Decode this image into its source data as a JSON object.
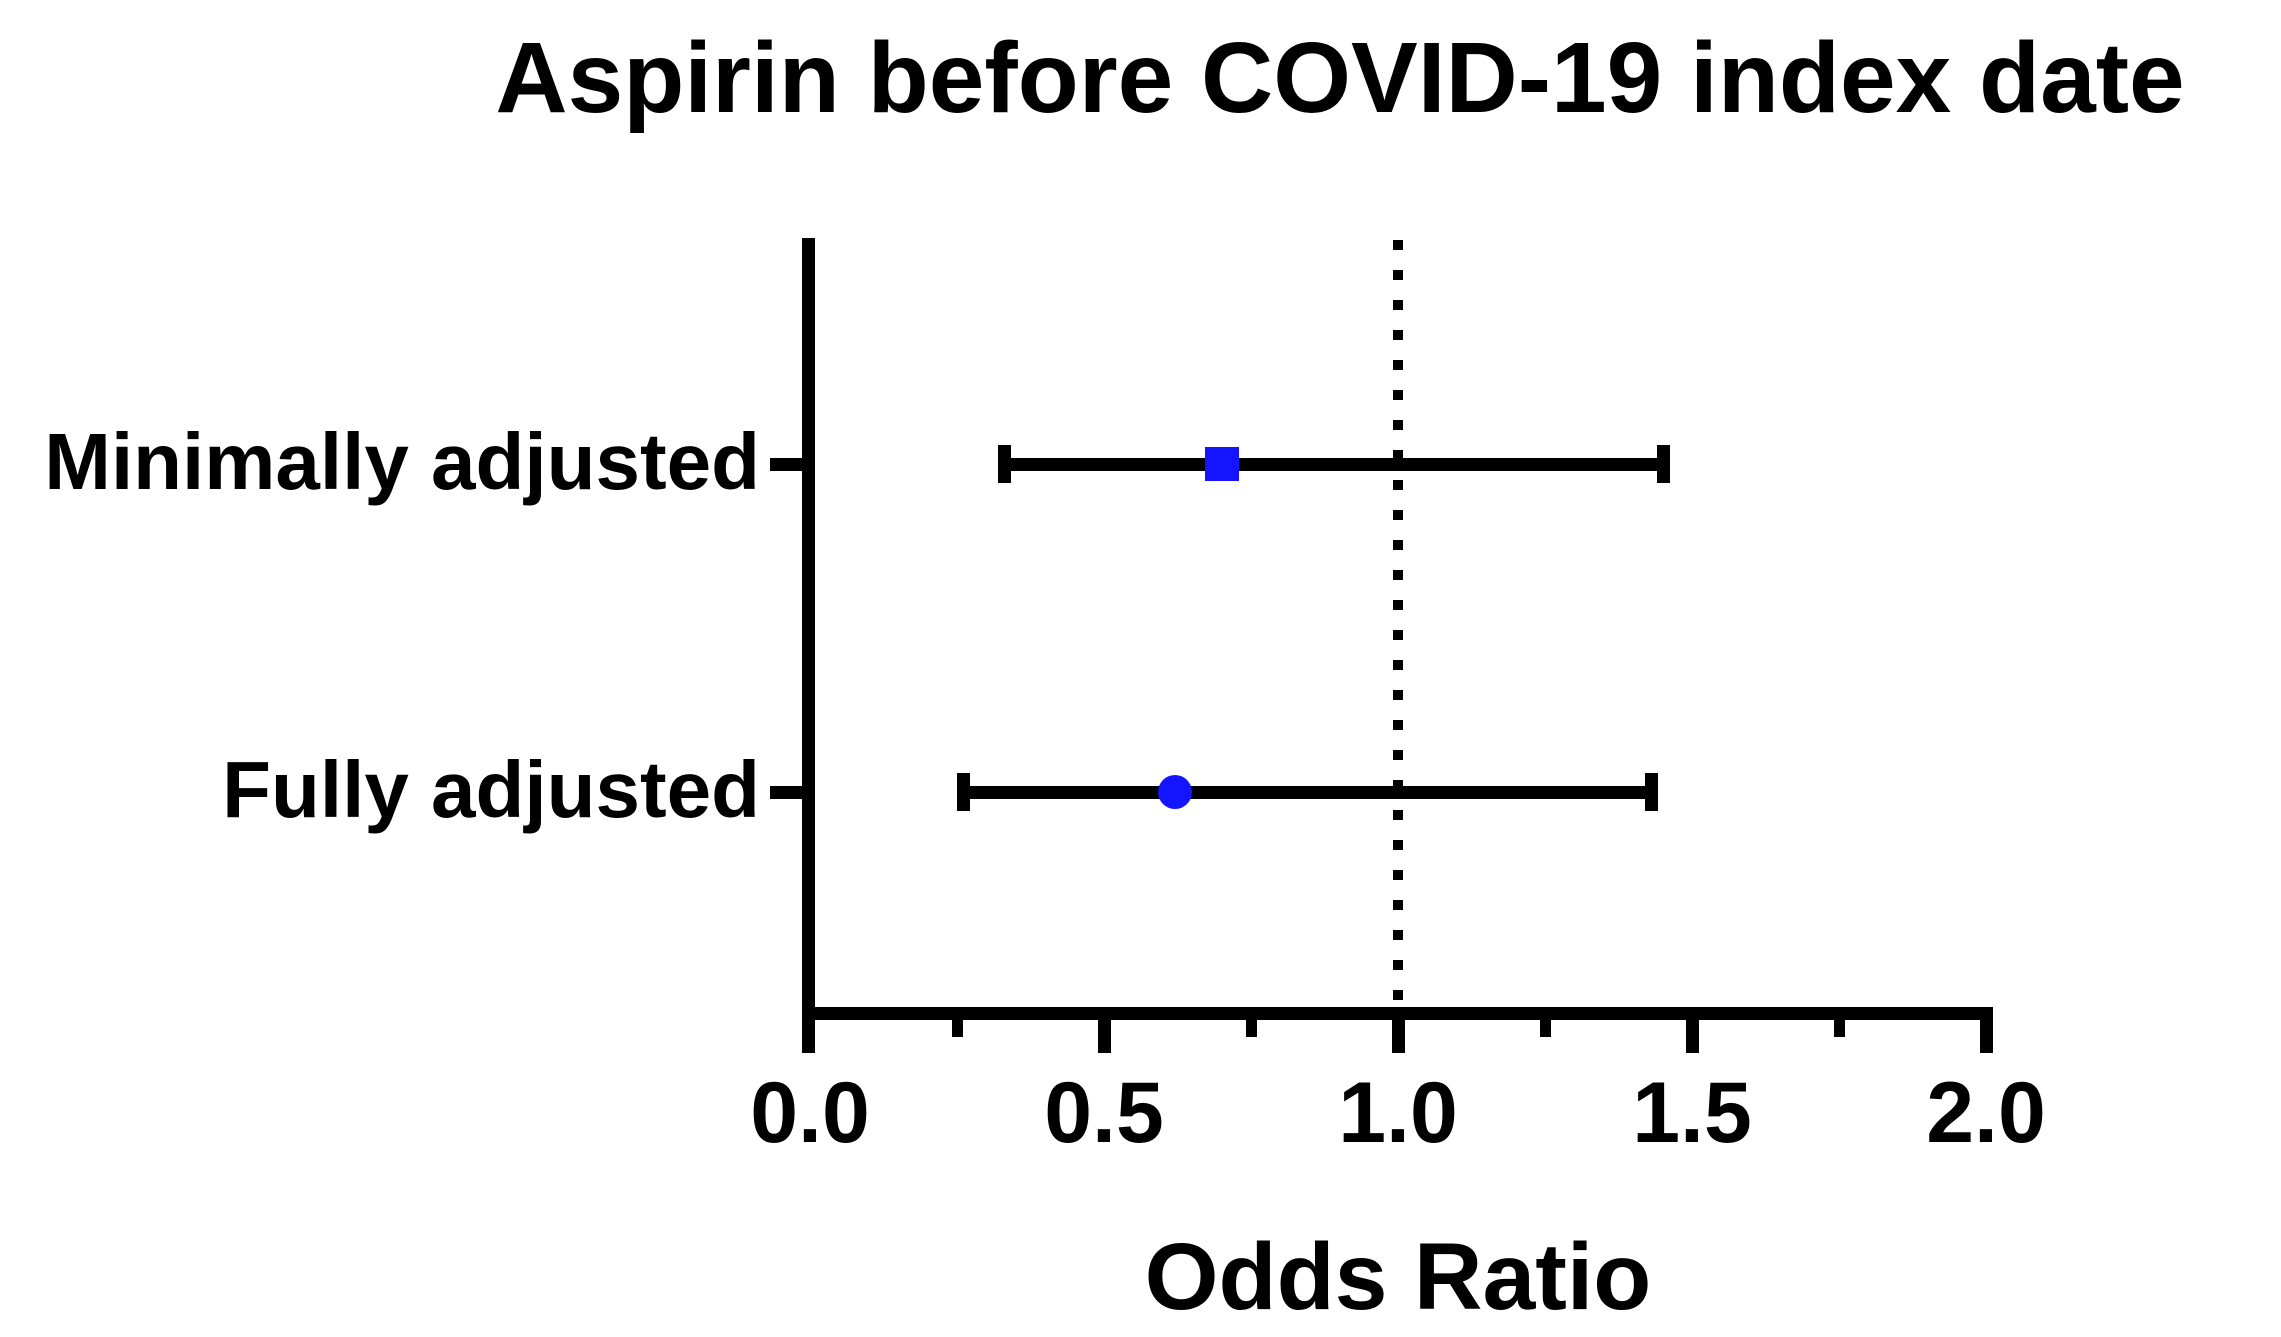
{
  "figure": {
    "title": "Aspirin before COVID-19 index date",
    "background": "#ffffff",
    "ink_color": "#000000"
  },
  "chart_data": {
    "type": "scatter",
    "subtype": "forest-plot",
    "title": "Aspirin before COVID-19 index date",
    "xlabel": "Odds Ratio",
    "ylabel": "",
    "xlim": [
      0.0,
      2.0
    ],
    "grid": false,
    "legend": false,
    "reference_line": {
      "x": 1.0,
      "style": "dotted",
      "color": "#000000"
    },
    "x_ticks": {
      "values": [
        0.0,
        0.5,
        1.0,
        1.5,
        2.0
      ],
      "labels": [
        "0.0",
        "0.5",
        "1.0",
        "1.5",
        "2.0"
      ]
    },
    "x_minor_ticks": [
      0.25,
      0.75,
      1.25,
      1.75
    ],
    "marker_color": "#1414ff",
    "rows": [
      {
        "label": "Minimally adjusted",
        "odds_ratio": 0.7,
        "ci_low": 0.33,
        "ci_high": 1.45,
        "marker": "square",
        "color": "#1414ff"
      },
      {
        "label": "Fully adjusted",
        "odds_ratio": 0.62,
        "ci_low": 0.26,
        "ci_high": 1.43,
        "marker": "circle",
        "color": "#1414ff"
      }
    ]
  }
}
